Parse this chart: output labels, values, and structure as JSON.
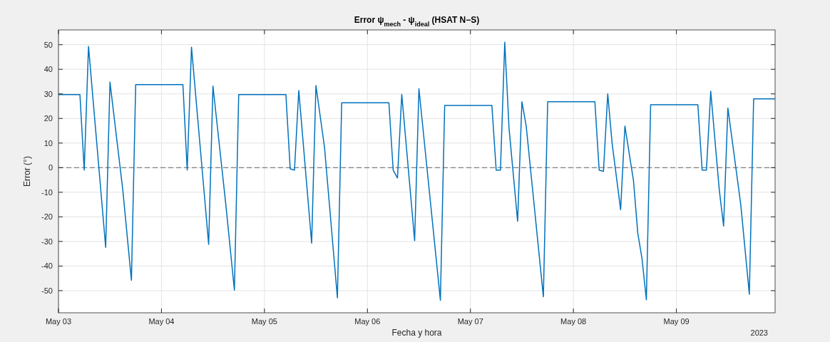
{
  "chart_data": {
    "type": "line",
    "title": "Error ψ$_{mech}$ - ψ$_{ideal}$ (HSAT N−S)",
    "xlabel": "Fecha y hora",
    "ylabel": "Error (°)",
    "annotations": [
      "2023"
    ],
    "x": [
      "2023-05-03T00:00",
      "2023-05-03T05:00",
      "2023-05-03T06:00",
      "2023-05-03T07:00",
      "2023-05-03T11:00",
      "2023-05-03T12:00",
      "2023-05-03T15:00",
      "2023-05-03T17:00",
      "2023-05-03T18:00",
      "2023-05-04T05:00",
      "2023-05-04T06:00",
      "2023-05-04T07:00",
      "2023-05-04T11:00",
      "2023-05-04T12:00",
      "2023-05-04T15:00",
      "2023-05-04T17:00",
      "2023-05-04T18:00",
      "2023-05-05T05:00",
      "2023-05-05T06:00",
      "2023-05-05T07:00",
      "2023-05-05T08:00",
      "2023-05-05T11:00",
      "2023-05-05T12:00",
      "2023-05-05T14:00",
      "2023-05-05T17:00",
      "2023-05-05T18:00",
      "2023-05-06T05:00",
      "2023-05-06T06:00",
      "2023-05-06T07:00",
      "2023-05-06T08:00",
      "2023-05-06T11:00",
      "2023-05-06T12:00",
      "2023-05-06T17:00",
      "2023-05-06T18:00",
      "2023-05-07T05:00",
      "2023-05-07T06:00",
      "2023-05-07T07:00",
      "2023-05-07T08:00",
      "2023-05-07T09:00",
      "2023-05-07T11:00",
      "2023-05-07T12:00",
      "2023-05-07T13:00",
      "2023-05-07T17:00",
      "2023-05-07T18:00",
      "2023-05-08T05:00",
      "2023-05-08T06:00",
      "2023-05-08T07:00",
      "2023-05-08T08:00",
      "2023-05-08T09:00",
      "2023-05-08T11:00",
      "2023-05-08T12:00",
      "2023-05-08T14:00",
      "2023-05-08T15:00",
      "2023-05-08T16:00",
      "2023-05-08T17:00",
      "2023-05-08T18:00",
      "2023-05-09T05:00",
      "2023-05-09T06:00",
      "2023-05-09T07:00",
      "2023-05-09T08:00",
      "2023-05-09T10:00",
      "2023-05-09T11:00",
      "2023-05-09T12:00",
      "2023-05-09T15:00",
      "2023-05-09T17:00",
      "2023-05-09T18:00",
      "2023-05-09T23:00"
    ],
    "series": [
      {
        "color": "#0072bd",
        "values": [
          29.7,
          29.7,
          -1,
          49.3,
          -32.4,
          34.8,
          -9.2,
          -45.8,
          33.8,
          33.8,
          -1,
          49,
          -31.2,
          33.2,
          -15,
          -49.8,
          29.7,
          29.7,
          -0.5,
          -1,
          31.4,
          -30.7,
          33.4,
          8.2,
          -52.9,
          26.4,
          26.4,
          -1,
          -4.2,
          29.8,
          -29.7,
          32.1,
          -53.9,
          25.3,
          25.3,
          -1,
          -1,
          51,
          16,
          -21.8,
          26.8,
          16.9,
          -52.5,
          26.8,
          26.8,
          -1,
          -1.5,
          30,
          10.2,
          -17.1,
          16.9,
          -5.3,
          -26.6,
          -37.2,
          -53.7,
          25.6,
          25.6,
          -1,
          -1,
          31.1,
          -9.2,
          -23.7,
          24.2,
          -15,
          -51.5,
          28,
          28
        ]
      }
    ],
    "xlim": [
      "2023-05-03",
      "2023-05-09T23:00"
    ],
    "xticks": [
      {
        "value": "2023-05-03",
        "label": "May 03"
      },
      {
        "value": "2023-05-04",
        "label": "May 04"
      },
      {
        "value": "2023-05-05",
        "label": "May 05"
      },
      {
        "value": "2023-05-06",
        "label": "May 06"
      },
      {
        "value": "2023-05-07",
        "label": "May 07"
      },
      {
        "value": "2023-05-08",
        "label": "May 08"
      },
      {
        "value": "2023-05-09",
        "label": "May 09"
      }
    ],
    "ylim": [
      -59,
      56
    ],
    "yticks": [
      -50,
      -40,
      -30,
      -20,
      -10,
      0,
      10,
      20,
      30,
      40,
      50
    ],
    "ref_lines": [
      {
        "axis": "y",
        "value": 0,
        "color": "#7f7f7f",
        "line_style": "dashed"
      }
    ],
    "grid": true,
    "marker": "none",
    "line_style": "solid"
  }
}
